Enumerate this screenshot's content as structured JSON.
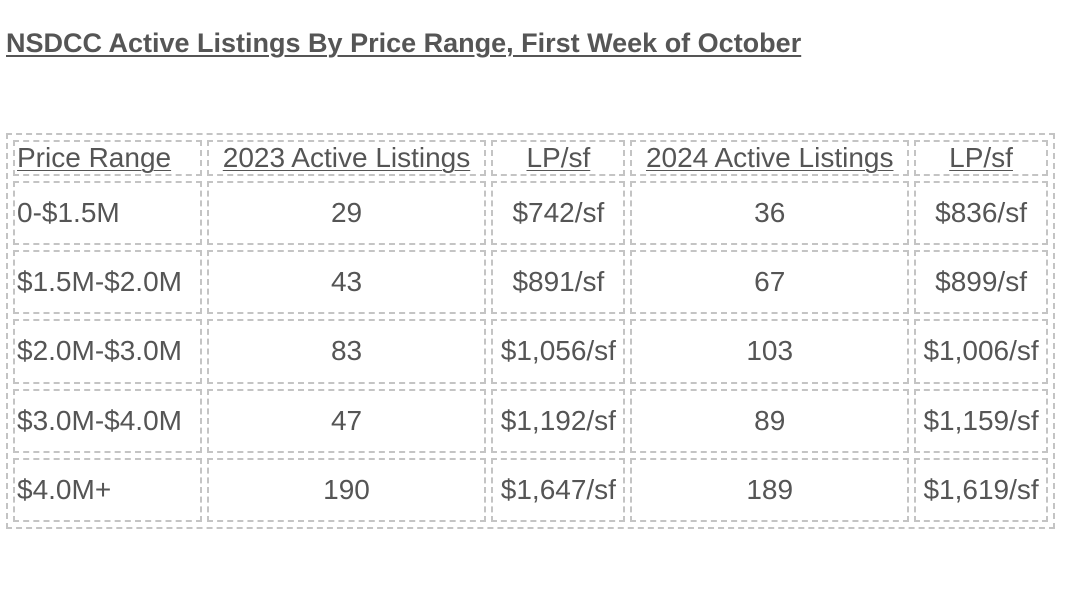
{
  "title": "NSDCC Active Listings By Price Range, First Week of October",
  "table": {
    "headers": [
      "Price Range",
      "2023 Active Listings",
      "LP/sf",
      "2024 Active Listings",
      "LP/sf"
    ],
    "rows": [
      [
        "0-$1.5M",
        "29",
        "$742/sf",
        "36",
        "$836/sf"
      ],
      [
        "$1.5M-$2.0M",
        "43",
        "$891/sf",
        "67",
        "$899/sf"
      ],
      [
        "$2.0M-$3.0M",
        "83",
        "$1,056/sf",
        "103",
        "$1,006/sf"
      ],
      [
        "$3.0M-$4.0M",
        "47",
        "$1,192/sf",
        "89",
        "$1,159/sf"
      ],
      [
        "$4.0M+",
        "190",
        "$1,647/sf",
        "189",
        "$1,619/sf"
      ]
    ]
  },
  "colors": {
    "text": "#555555",
    "border": "#c4c4c4"
  }
}
